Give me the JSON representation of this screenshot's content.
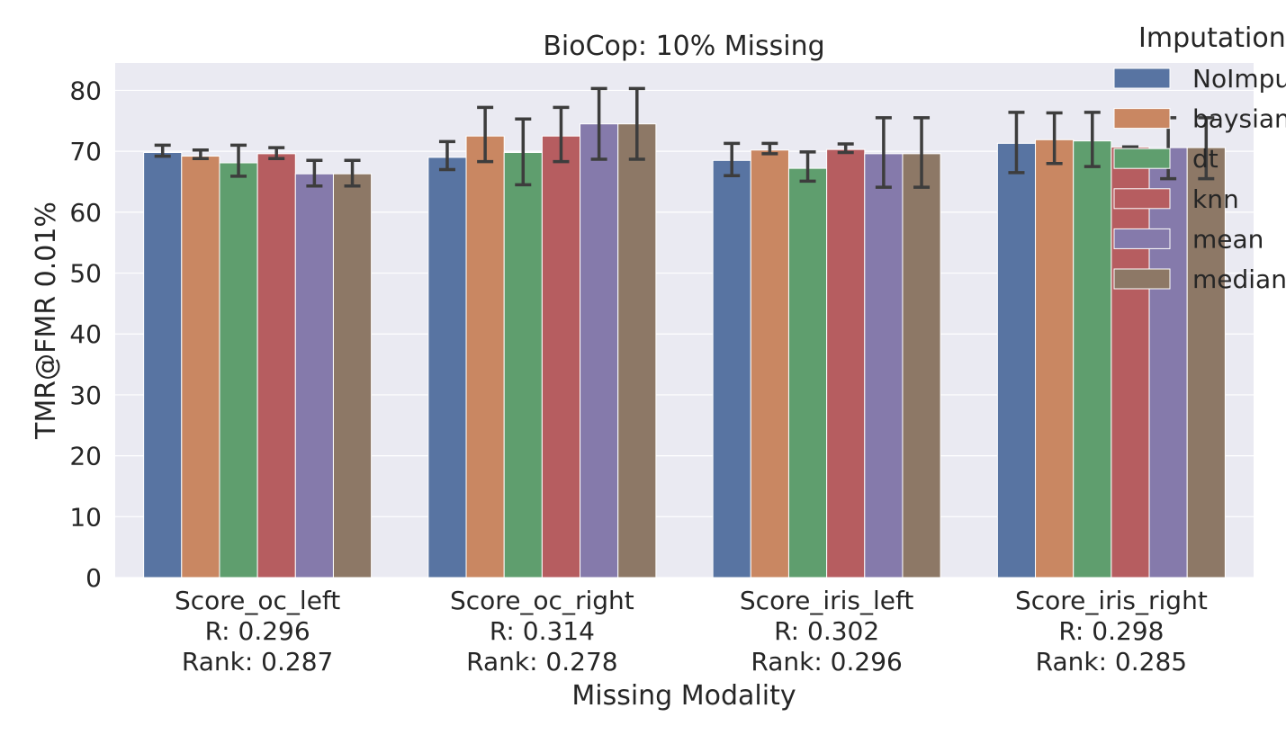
{
  "chart_data": {
    "type": "bar",
    "title": "BioCop: 10% Missing",
    "xlabel": "Missing Modality",
    "ylabel": "TMR@FMR 0.01%",
    "ylim": [
      0,
      84.5
    ],
    "yticks": [
      0,
      10,
      20,
      30,
      40,
      50,
      60,
      70,
      80
    ],
    "grid": true,
    "legend_title": "Imputation",
    "legend_position": "top-right",
    "categories": [
      {
        "name": "Score_oc_left",
        "r": "R: 0.296",
        "rank": "Rank: 0.287"
      },
      {
        "name": "Score_oc_right",
        "r": "R: 0.314",
        "rank": "Rank: 0.278"
      },
      {
        "name": "Score_iris_left",
        "r": "R: 0.302",
        "rank": "Rank: 0.296"
      },
      {
        "name": "Score_iris_right",
        "r": "R: 0.298",
        "rank": "Rank: 0.285"
      }
    ],
    "series": [
      {
        "name": "NoImpu",
        "color": "#5874a2",
        "values": [
          69.8,
          69.0,
          68.5,
          71.3
        ],
        "err_low": [
          69.2,
          67.0,
          66.0,
          66.5
        ],
        "err_high": [
          71.0,
          71.6,
          71.3,
          76.4
        ]
      },
      {
        "name": "baysian",
        "color": "#c98762",
        "values": [
          69.2,
          72.5,
          70.2,
          71.9
        ],
        "err_low": [
          68.8,
          68.3,
          69.6,
          68.0
        ],
        "err_high": [
          70.2,
          77.2,
          71.3,
          76.3
        ]
      },
      {
        "name": "dt",
        "color": "#5f9e6e",
        "values": [
          68.1,
          69.8,
          67.2,
          71.7
        ],
        "err_low": [
          65.9,
          64.5,
          65.1,
          67.5
        ],
        "err_high": [
          71.0,
          75.3,
          69.9,
          76.4
        ]
      },
      {
        "name": "knn",
        "color": "#b65d60",
        "values": [
          69.6,
          72.5,
          70.3,
          70.7
        ],
        "err_low": [
          68.8,
          68.3,
          69.8,
          70.7
        ],
        "err_high": [
          70.6,
          77.2,
          71.2,
          70.7
        ]
      },
      {
        "name": "mean",
        "color": "#857aab",
        "values": [
          66.3,
          74.5,
          69.6,
          70.6
        ],
        "err_low": [
          64.3,
          68.7,
          64.1,
          65.5
        ],
        "err_high": [
          68.5,
          80.3,
          75.5,
          75.5
        ]
      },
      {
        "name": "median",
        "color": "#8d7866",
        "values": [
          66.3,
          74.5,
          69.6,
          70.6
        ],
        "err_low": [
          64.3,
          68.7,
          64.1,
          65.5
        ],
        "err_high": [
          68.5,
          80.3,
          75.5,
          75.5
        ]
      }
    ]
  }
}
